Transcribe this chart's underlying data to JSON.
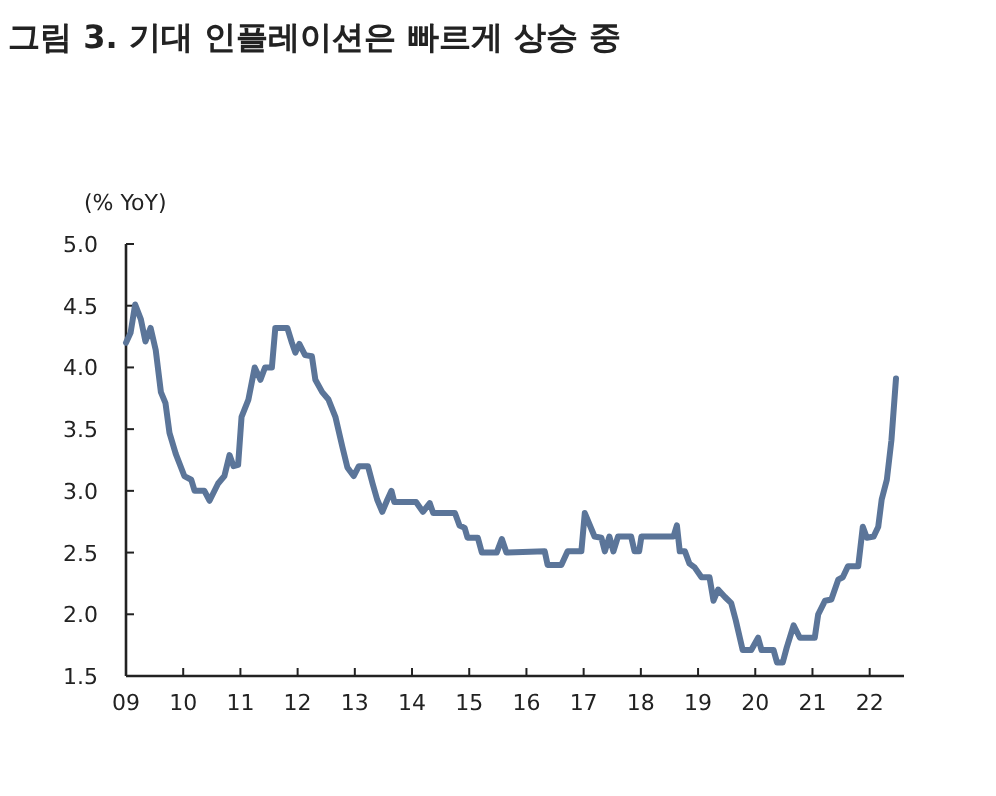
{
  "chart_data": {
    "type": "line",
    "title": "그림 3. 기대 인플레이션은 빠르게 상승 중",
    "ylabel": "(% YoY)",
    "x": [
      2009.0,
      2009.08,
      2009.16,
      2009.26,
      2009.34,
      2009.43,
      2009.52,
      2009.61,
      2009.69,
      2009.76,
      2009.87,
      2010.02,
      2010.14,
      2010.2,
      2010.37,
      2010.46,
      2010.61,
      2010.72,
      2010.81,
      2010.88,
      2010.96,
      2011.02,
      2011.14,
      2011.25,
      2011.35,
      2011.43,
      2011.55,
      2011.61,
      2011.82,
      2011.9,
      2011.96,
      2012.03,
      2012.13,
      2012.25,
      2012.31,
      2012.43,
      2012.54,
      2012.66,
      2012.78,
      2012.87,
      2012.98,
      2013.07,
      2013.23,
      2013.31,
      2013.39,
      2013.48,
      2013.57,
      2013.64,
      2013.69,
      2014.07,
      2014.19,
      2014.31,
      2014.37,
      2014.75,
      2014.83,
      2014.92,
      2014.97,
      2015.15,
      2015.22,
      2015.48,
      2015.57,
      2015.65,
      2016.32,
      2016.37,
      2016.61,
      2016.72,
      2016.96,
      2017.02,
      2017.19,
      2017.31,
      2017.37,
      2017.45,
      2017.52,
      2017.6,
      2017.83,
      2017.89,
      2017.97,
      2018.01,
      2018.57,
      2018.63,
      2018.68,
      2018.77,
      2018.85,
      2018.94,
      2019.06,
      2019.2,
      2019.27,
      2019.35,
      2019.47,
      2019.58,
      2019.66,
      2019.78,
      2019.93,
      2020.05,
      2020.11,
      2020.32,
      2020.38,
      2020.48,
      2020.55,
      2020.67,
      2020.78,
      2021.04,
      2021.1,
      2021.22,
      2021.33,
      2021.45,
      2021.53,
      2021.62,
      2021.8,
      2021.88,
      2021.95,
      2022.07,
      2022.15,
      2022.21,
      2022.3,
      2022.38,
      2022.46
    ],
    "series": [
      {
        "color": "#5b7599",
        "values": [
          4.2,
          4.28,
          4.51,
          4.39,
          4.21,
          4.32,
          4.14,
          3.8,
          3.71,
          3.47,
          3.3,
          3.12,
          3.09,
          3.0,
          3.0,
          2.92,
          3.06,
          3.12,
          3.29,
          3.2,
          3.21,
          3.6,
          3.74,
          4.0,
          3.9,
          4.0,
          4.0,
          4.32,
          4.32,
          4.2,
          4.12,
          4.19,
          4.1,
          4.09,
          3.9,
          3.8,
          3.74,
          3.6,
          3.36,
          3.19,
          3.12,
          3.2,
          3.2,
          3.06,
          2.93,
          2.83,
          2.93,
          3.0,
          2.91,
          2.91,
          2.83,
          2.9,
          2.82,
          2.82,
          2.72,
          2.7,
          2.62,
          2.62,
          2.5,
          2.5,
          2.61,
          2.5,
          2.51,
          2.4,
          2.4,
          2.51,
          2.51,
          2.82,
          2.63,
          2.62,
          2.51,
          2.63,
          2.51,
          2.63,
          2.63,
          2.51,
          2.51,
          2.63,
          2.63,
          2.72,
          2.51,
          2.51,
          2.41,
          2.38,
          2.3,
          2.3,
          2.11,
          2.2,
          2.14,
          2.09,
          1.95,
          1.71,
          1.71,
          1.81,
          1.71,
          1.71,
          1.61,
          1.61,
          1.73,
          1.91,
          1.81,
          1.81,
          2.0,
          2.11,
          2.12,
          2.28,
          2.3,
          2.39,
          2.39,
          2.71,
          2.62,
          2.63,
          2.71,
          2.93,
          3.09,
          3.41,
          3.91
        ]
      }
    ],
    "xlim": [
      2009,
      2022.6
    ],
    "xticks": [
      {
        "value": 2009,
        "label": "09"
      },
      {
        "value": 2010,
        "label": "10"
      },
      {
        "value": 2011,
        "label": "11"
      },
      {
        "value": 2012,
        "label": "12"
      },
      {
        "value": 2013,
        "label": "13"
      },
      {
        "value": 2014,
        "label": "14"
      },
      {
        "value": 2015,
        "label": "15"
      },
      {
        "value": 2016,
        "label": "16"
      },
      {
        "value": 2017,
        "label": "17"
      },
      {
        "value": 2018,
        "label": "18"
      },
      {
        "value": 2019,
        "label": "19"
      },
      {
        "value": 2020,
        "label": "20"
      },
      {
        "value": 2021,
        "label": "21"
      },
      {
        "value": 2022,
        "label": "22"
      }
    ],
    "ylim": [
      1.5,
      5.0
    ],
    "yticks": [
      {
        "value": 1.5,
        "label": "1.5"
      },
      {
        "value": 2,
        "label": "2.0"
      },
      {
        "value": 2.5,
        "label": "2.5"
      },
      {
        "value": 3,
        "label": "3.0"
      },
      {
        "value": 3.5,
        "label": "3.5"
      },
      {
        "value": 4,
        "label": "4.0"
      },
      {
        "value": 4.5,
        "label": "4.5"
      },
      {
        "value": 5,
        "label": "5.0"
      }
    ],
    "grid": false,
    "marker": "none",
    "line_style": "solid"
  }
}
